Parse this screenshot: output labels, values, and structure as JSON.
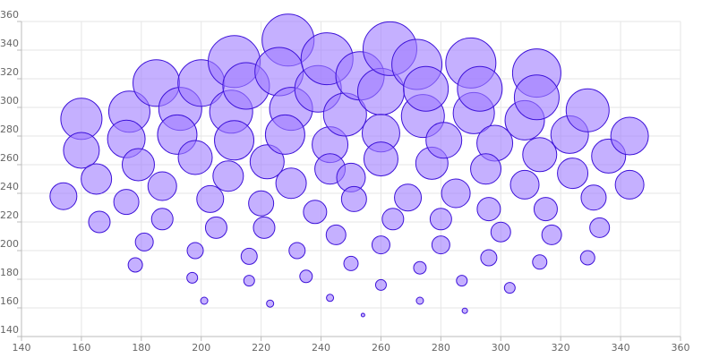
{
  "chart_data": {
    "type": "bubble",
    "xlim": [
      140,
      360
    ],
    "xticks": [
      140,
      160,
      180,
      200,
      220,
      240,
      260,
      280,
      300,
      320,
      340,
      360
    ],
    "ylim": [
      140,
      360
    ],
    "yticks": [
      140,
      160,
      180,
      200,
      220,
      240,
      260,
      280,
      300,
      320,
      340,
      360
    ],
    "grid": true,
    "series": [
      {
        "color": "#9f7cff",
        "edge_color": "#3d12d9",
        "x": [
          154,
          160,
          160,
          165,
          166,
          176,
          175,
          175,
          179,
          181,
          178,
          185,
          193,
          192,
          187,
          187,
          198,
          200,
          198,
          197,
          201,
          203,
          205,
          211,
          210,
          211,
          209,
          215,
          216,
          216,
          220,
          221,
          222,
          223,
          229,
          226,
          230,
          228,
          230,
          232,
          235,
          238,
          239,
          242,
          243,
          243,
          243,
          245,
          250,
          250,
          251,
          248,
          253,
          254,
          260,
          263,
          260,
          260,
          260,
          260,
          264,
          272,
          269,
          273,
          273,
          274,
          275,
          277,
          281,
          280,
          280,
          285,
          287,
          288,
          290,
          291,
          293,
          298,
          295,
          296,
          300,
          296,
          303,
          308,
          308,
          312,
          312,
          313,
          315,
          317,
          313,
          323,
          324,
          329,
          331,
          333,
          329,
          336,
          343,
          343
        ],
        "values": [
          238,
          292,
          270,
          250,
          220,
          297,
          278,
          234,
          260,
          206,
          190,
          317,
          299,
          281,
          245,
          222,
          265,
          317,
          200,
          181,
          165,
          236,
          216,
          332,
          297,
          277,
          252,
          315,
          196,
          179,
          233,
          216,
          262,
          163,
          347,
          325,
          299,
          281,
          247,
          200,
          182,
          227,
          313,
          334,
          274,
          257,
          167,
          211,
          191,
          251,
          236,
          295,
          322,
          155,
          311,
          341,
          282,
          264,
          204,
          176,
          222,
          330,
          237,
          188,
          165,
          294,
          313,
          261,
          277,
          222,
          204,
          240,
          179,
          158,
          331,
          296,
          313,
          275,
          257,
          229,
          213,
          195,
          174,
          291,
          246,
          324,
          307,
          267,
          229,
          211,
          192,
          281,
          254,
          298,
          237,
          216,
          195,
          266,
          280,
          246
        ],
        "sizes": [
          15,
          23,
          20,
          17,
          12,
          23,
          21,
          14,
          18,
          10,
          8,
          26,
          24,
          22,
          16,
          12,
          19,
          26,
          9,
          6,
          4,
          15,
          12,
          29,
          24,
          22,
          17,
          26,
          9,
          6,
          14,
          12,
          19,
          4,
          29,
          27,
          24,
          22,
          17,
          9,
          7,
          13,
          26,
          29,
          20,
          17,
          4,
          11,
          8,
          16,
          14,
          24,
          27,
          2,
          26,
          30,
          21,
          19,
          10,
          6,
          12,
          28,
          15,
          7,
          4,
          24,
          25,
          18,
          20,
          12,
          10,
          16,
          6,
          3,
          28,
          23,
          25,
          20,
          17,
          13,
          11,
          9,
          6,
          22,
          16,
          27,
          25,
          19,
          13,
          11,
          8,
          21,
          17,
          24,
          14,
          11,
          8,
          19,
          21,
          16
        ]
      }
    ]
  }
}
